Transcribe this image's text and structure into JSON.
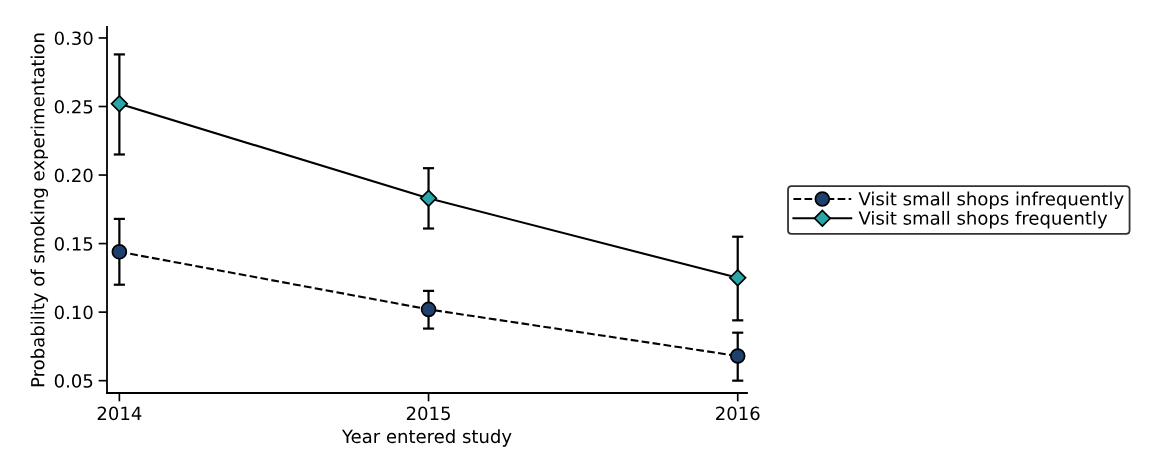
{
  "chart_data": {
    "type": "line",
    "xlabel": "Year entered study",
    "ylabel": "Probability of smoking experimentation",
    "x": [
      2014,
      2015,
      2016
    ],
    "series": [
      {
        "name": "Visit small shops infrequently",
        "color": "#1f3f6e",
        "marker": "circle",
        "line_style": "dashed",
        "values": [
          0.144,
          0.102,
          0.068
        ],
        "errors": [
          [
            0.12,
            0.168
          ],
          [
            0.088,
            0.1155
          ],
          [
            0.05,
            0.085
          ]
        ]
      },
      {
        "name": "Visit small shops frequently",
        "color": "#2aa5a8",
        "marker": "diamond",
        "line_style": "solid",
        "values": [
          0.252,
          0.183,
          0.125
        ],
        "errors": [
          [
            0.215,
            0.288
          ],
          [
            0.161,
            0.205
          ],
          [
            0.094,
            0.155
          ]
        ]
      }
    ],
    "xlim": [
      2013.96,
      2016.03
    ],
    "xticks": [
      2014,
      2015,
      2016
    ],
    "ylim": [
      0.041,
      0.308
    ],
    "yticks": [
      {
        "value": 0.05,
        "label": "0.05"
      },
      {
        "value": 0.1,
        "label": "0.10"
      },
      {
        "value": 0.15,
        "label": "0.15"
      },
      {
        "value": 0.2,
        "label": "0.20"
      },
      {
        "value": 0.25,
        "label": "0.25"
      },
      {
        "value": 0.3,
        "label": "0.30"
      }
    ],
    "grid": false,
    "legend": "right"
  }
}
